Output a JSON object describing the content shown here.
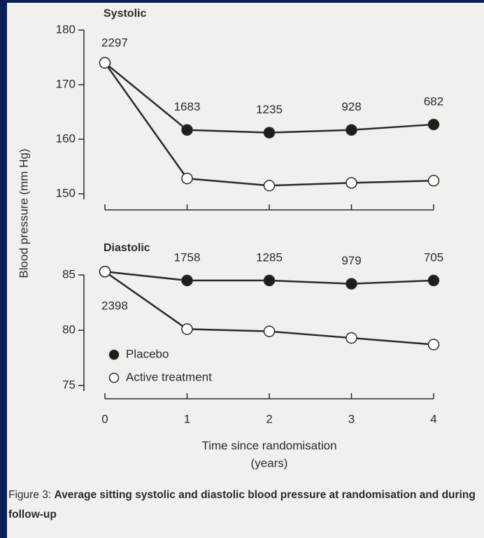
{
  "chart_data": [
    {
      "type": "line",
      "title": "Systolic",
      "x": [
        0,
        1,
        2,
        3,
        4
      ],
      "xlim": [
        0,
        4
      ],
      "xticks": [
        0,
        1,
        2,
        3,
        4
      ],
      "ylim": [
        150,
        180
      ],
      "yticks": [
        150,
        160,
        170,
        180
      ],
      "series": [
        {
          "color": "#2a2a2a",
          "marker_fill": "#1e1e1e",
          "values": [
            174,
            161.7,
            161.2,
            161.7,
            162.7
          ]
        },
        {
          "color": "#2a2a2a",
          "marker_fill": "#ffffff",
          "values": [
            174,
            152.8,
            151.5,
            152.0,
            152.4
          ]
        }
      ],
      "counts": [
        2297,
        1683,
        1235,
        928,
        682
      ]
    },
    {
      "type": "line",
      "title": "Diastolic",
      "x": [
        0,
        1,
        2,
        3,
        4
      ],
      "xlim": [
        0,
        4
      ],
      "xticks": [
        0,
        1,
        2,
        3,
        4
      ],
      "ylim": [
        75,
        85
      ],
      "yticks": [
        75,
        80,
        85
      ],
      "series": [
        {
          "name": "Placebo",
          "color": "#2a2a2a",
          "marker_fill": "#1e1e1e",
          "values": [
            85.3,
            84.5,
            84.5,
            84.2,
            84.5
          ]
        },
        {
          "name": "Active treatment",
          "color": "#2a2a2a",
          "marker_fill": "#ffffff",
          "values": [
            85.3,
            80.1,
            79.9,
            79.3,
            78.7
          ]
        }
      ],
      "counts": [
        2398,
        1758,
        1285,
        979,
        705
      ],
      "legend": "lower left"
    }
  ],
  "y_label": "Blood pressure (mm Hg)",
  "x_label": "Time since randomisation",
  "x_label_unit": "(years)",
  "caption": {
    "label": "Figure 3:",
    "text": "Average sitting systolic and diastolic blood pressure at randomisation and during follow-up"
  }
}
